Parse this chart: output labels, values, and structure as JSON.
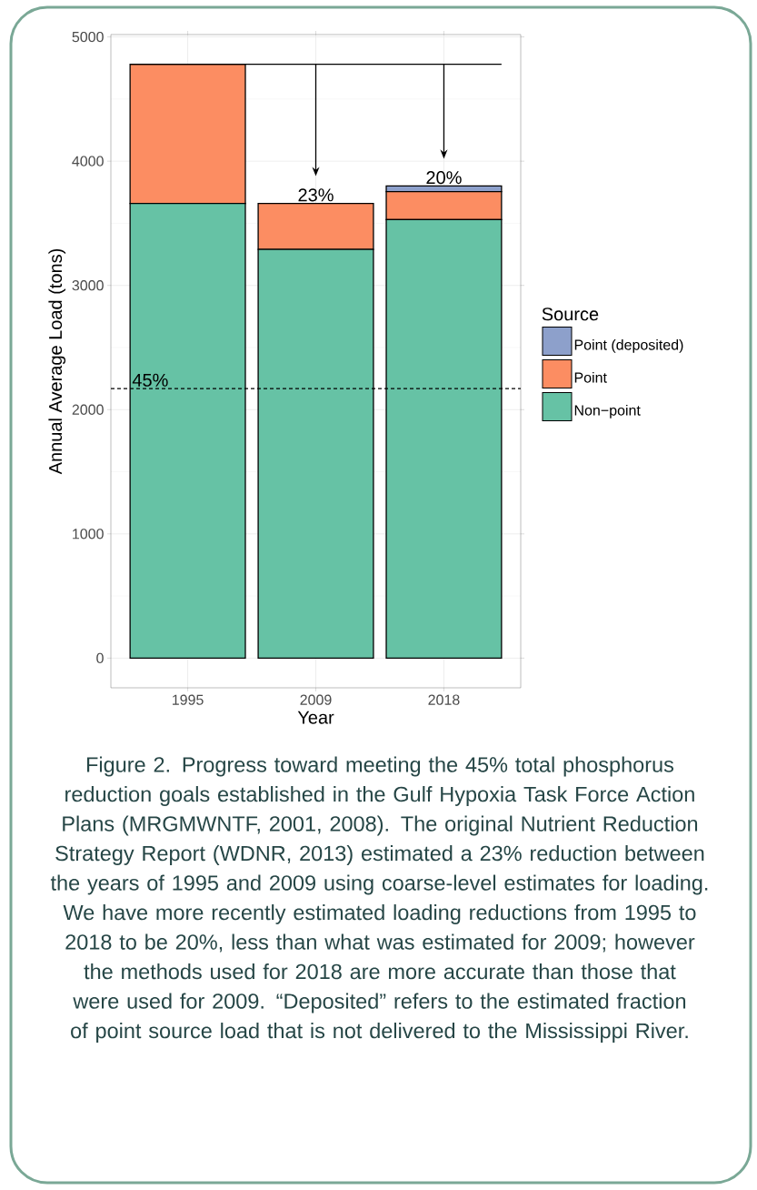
{
  "chart_data": {
    "type": "bar",
    "stacked": true,
    "xlabel": "Year",
    "ylabel": "Annual Average Load (tons)",
    "legend_title": "Source",
    "categories": [
      "1995",
      "2009",
      "2018"
    ],
    "series": [
      {
        "name": "Non−point",
        "color": "#66c2a5",
        "values": [
          3660,
          3290,
          3530
        ]
      },
      {
        "name": "Point",
        "color": "#fc8d62",
        "values": [
          1120,
          370,
          225
        ]
      },
      {
        "name": "Point (deposited)",
        "color": "#8da0cb",
        "values": [
          0,
          0,
          45
        ]
      }
    ],
    "ylim": [
      -239,
      5019
    ],
    "yticks": [
      0,
      1000,
      2000,
      3000,
      4000,
      5000
    ],
    "grid": true,
    "legend": "right",
    "ref_lines": [
      {
        "axis": "y",
        "value": 4780,
        "line_style": "solid"
      },
      {
        "axis": "y",
        "value": 2170,
        "line_style": "dashed"
      }
    ],
    "annotations": [
      {
        "text": "23%",
        "x": "2009",
        "y": 3660
      },
      {
        "text": "45%",
        "y": 2170
      },
      {
        "text": "20%",
        "x": "2018",
        "y": 3800
      },
      "Figure 2. Progress toward meeting the 45% total phosphorus reduction goals established in the Gulf Hypoxia Task Force Action Plans (MRGMWNTF, 2001, 2008). The original Nutrient Reduction Strategy Report (WDNR, 2013) estimated a 23% reduction between the years of 1995 and 2009 using coarse-level estimates for loading. We have more recently estimated loading reductions from 1995 to 2018 to be 20%, less than what was estimated for 2009; however the methods used for 2018 are more accurate than those that were used for 2009. “Deposited” refers to the estimated fraction of point source load that is not delivered to the Mississippi River."
    ]
  }
}
